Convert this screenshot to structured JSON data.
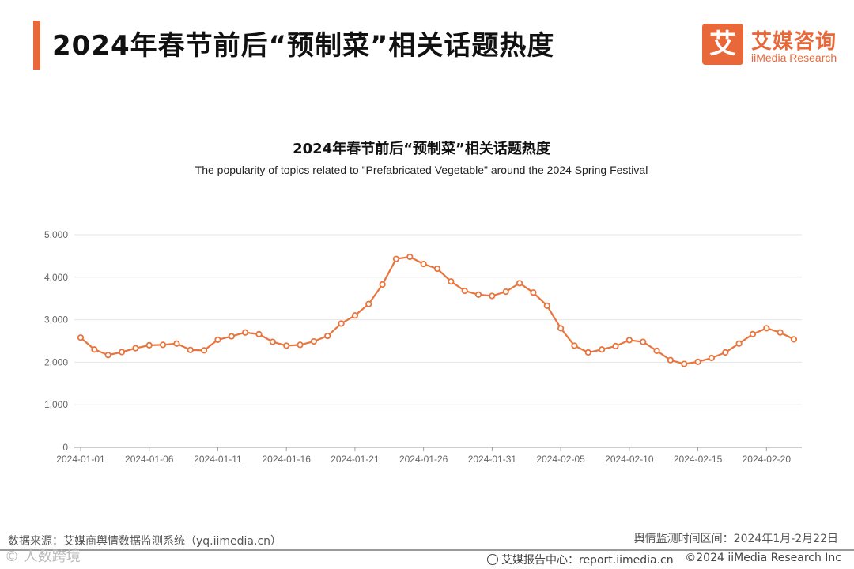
{
  "header": {
    "title": "2024年春节前后“预制菜”相关话题热度",
    "logo_mark": "艾",
    "logo_cn": "艾媒咨询",
    "logo_en": "iiMedia Research"
  },
  "colors": {
    "accent": "#e8683a",
    "line": "#e8753d",
    "grid": "#e4e4e4",
    "axis": "#9a9a9a"
  },
  "chart_data": {
    "type": "line",
    "title": "2024年春节前后“预制菜”相关话题热度",
    "subtitle": "The popularity of topics related to \"Prefabricated Vegetable\" around the 2024 Spring Festival",
    "xlabel": "",
    "ylabel": "",
    "ylim": [
      0,
      5000
    ],
    "y_ticks": [
      "0",
      "1,000",
      "2,000",
      "3,000",
      "4,000",
      "5,000"
    ],
    "y_tick_values": [
      0,
      1000,
      2000,
      3000,
      4000,
      5000
    ],
    "x_tick_labels": [
      "2024-01-01",
      "2024-01-06",
      "2024-01-11",
      "2024-01-16",
      "2024-01-21",
      "2024-01-26",
      "2024-01-31",
      "2024-02-05",
      "2024-02-10",
      "2024-02-15",
      "2024-02-20"
    ],
    "grid": true,
    "legend": "none",
    "x": [
      "2024-01-01",
      "2024-01-02",
      "2024-01-03",
      "2024-01-04",
      "2024-01-05",
      "2024-01-06",
      "2024-01-07",
      "2024-01-08",
      "2024-01-09",
      "2024-01-10",
      "2024-01-11",
      "2024-01-12",
      "2024-01-13",
      "2024-01-14",
      "2024-01-15",
      "2024-01-16",
      "2024-01-17",
      "2024-01-18",
      "2024-01-19",
      "2024-01-20",
      "2024-01-21",
      "2024-01-22",
      "2024-01-23",
      "2024-01-24",
      "2024-01-25",
      "2024-01-26",
      "2024-01-27",
      "2024-01-28",
      "2024-01-29",
      "2024-01-30",
      "2024-01-31",
      "2024-02-01",
      "2024-02-02",
      "2024-02-03",
      "2024-02-04",
      "2024-02-05",
      "2024-02-06",
      "2024-02-07",
      "2024-02-08",
      "2024-02-09",
      "2024-02-10",
      "2024-02-11",
      "2024-02-12",
      "2024-02-13",
      "2024-02-14",
      "2024-02-15",
      "2024-02-16",
      "2024-02-17",
      "2024-02-18",
      "2024-02-19",
      "2024-02-20",
      "2024-02-21",
      "2024-02-22"
    ],
    "series": [
      {
        "values": [
          2580,
          2300,
          2170,
          2240,
          2330,
          2400,
          2410,
          2440,
          2290,
          2280,
          2530,
          2610,
          2700,
          2660,
          2480,
          2390,
          2410,
          2490,
          2620,
          2910,
          3100,
          3370,
          3830,
          4430,
          4480,
          4310,
          4200,
          3900,
          3680,
          3590,
          3560,
          3660,
          3860,
          3640,
          3330,
          2800,
          2390,
          2230,
          2300,
          2380,
          2520,
          2480,
          2270,
          2050,
          1960,
          2010,
          2100,
          2230,
          2440,
          2660,
          2800,
          2700,
          2540
        ]
      }
    ]
  },
  "footer": {
    "source": "数据来源：艾媒商舆情数据监测系统（yq.iimedia.cn）",
    "period": "舆情监测时间区间：2024年1月-2月22日",
    "report": "艾媒报告中心：report.iimedia.cn",
    "copyright": "©2024  iiMedia Research  Inc",
    "watermark": "© 人数跨境"
  }
}
